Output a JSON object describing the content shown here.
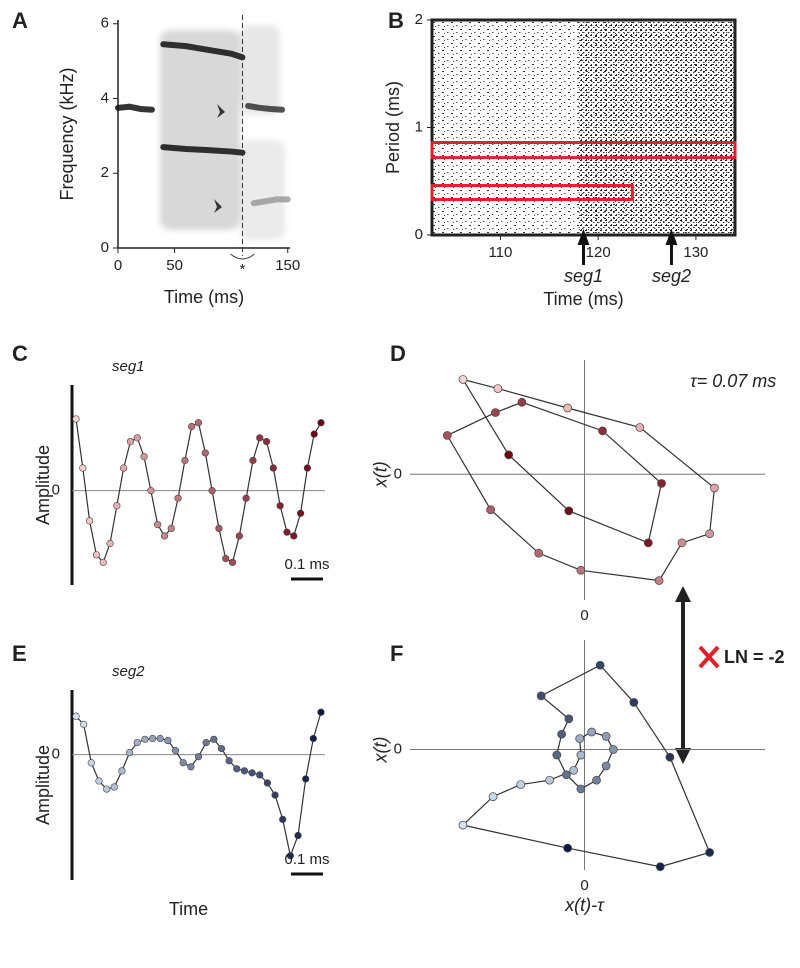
{
  "link": {
    "text": "LN = -2"
  },
  "chart_data": [
    {
      "type": "spectrogram",
      "label": "A",
      "xlabel": "Time (ms)",
      "ylabel": "Frequency (kHz)",
      "xlim": [
        0,
        152
      ],
      "ylim": [
        0,
        6.1
      ],
      "xticks": [
        0,
        50,
        150
      ],
      "yticks": [
        0,
        2,
        4,
        6
      ],
      "marker_x": 110,
      "marker_text": "*",
      "series": [
        {
          "color": "#111111",
          "x": [
            0,
            10,
            20,
            30
          ],
          "values": [
            3.75,
            3.78,
            3.72,
            3.7
          ]
        },
        {
          "color": "#111111",
          "x": [
            40,
            60,
            80,
            100,
            110
          ],
          "values": [
            5.45,
            5.4,
            5.3,
            5.2,
            5.1
          ]
        },
        {
          "color": "#111111",
          "x": [
            40,
            60,
            80,
            100,
            110
          ],
          "values": [
            2.7,
            2.65,
            2.62,
            2.58,
            2.55
          ]
        },
        {
          "color": "#333333",
          "x": [
            115,
            125,
            135,
            145
          ],
          "values": [
            3.8,
            3.75,
            3.72,
            3.7
          ]
        },
        {
          "color": "#9a9a9a",
          "x": [
            120,
            130,
            140,
            150
          ],
          "values": [
            1.2,
            1.25,
            1.3,
            1.3
          ]
        }
      ]
    },
    {
      "type": "raster",
      "label": "B",
      "xlabel": "Time (ms)",
      "ylabel": "Period (ms)",
      "xlim": [
        103,
        134
      ],
      "ylim": [
        0,
        2
      ],
      "xticks": [
        110,
        120,
        130
      ],
      "yticks": [
        0,
        1,
        2
      ],
      "boxes": [
        {
          "x": [
            103,
            134
          ],
          "y": [
            0.72,
            0.86
          ],
          "color": "#e0202a"
        },
        {
          "x": [
            103,
            123.5
          ],
          "y": [
            0.33,
            0.46
          ],
          "color": "#e0202a"
        }
      ],
      "markers": [
        {
          "x": 118.5,
          "label": "seg1"
        },
        {
          "x": 127.5,
          "label": "seg2"
        }
      ]
    },
    {
      "type": "waveform",
      "label": "C",
      "title": "seg1",
      "ylabel": "Amplitude",
      "ylim": [
        -1.25,
        1.4
      ],
      "yticks": [
        0
      ],
      "scale_bar": "0.1 ms",
      "colors": [
        "#fbd3d3",
        "#6e0010"
      ],
      "values": [
        0.95,
        0.3,
        -0.4,
        -0.85,
        -0.95,
        -0.7,
        -0.2,
        0.3,
        0.65,
        0.7,
        0.45,
        0.0,
        -0.45,
        -0.6,
        -0.5,
        -0.1,
        0.4,
        0.85,
        0.9,
        0.5,
        0.0,
        -0.5,
        -0.9,
        -0.95,
        -0.6,
        -0.1,
        0.4,
        0.7,
        0.65,
        0.3,
        -0.2,
        -0.55,
        -0.6,
        -0.3,
        0.3,
        0.75,
        0.9
      ]
    },
    {
      "type": "phase",
      "label": "D",
      "ylabel": "x(t)",
      "annotation": "τ= 0.07 ms",
      "xlim": [
        -1.45,
        1.5
      ],
      "ylim": [
        -1.1,
        1.0
      ],
      "xticks": [
        0
      ],
      "yticks": [
        0
      ],
      "colors": [
        "#fbd3d3",
        "#6e0010"
      ],
      "x": [
        -1.01,
        -0.72,
        -0.14,
        0.46,
        1.08,
        1.04,
        0.81,
        0.62,
        -0.03,
        -0.38,
        -0.78,
        -1.14,
        -0.74,
        -0.52,
        0.15,
        0.64,
        0.53,
        -0.13,
        -0.63
      ],
      "values": [
        0.83,
        0.75,
        0.58,
        0.41,
        -0.12,
        -0.52,
        -0.6,
        -0.93,
        -0.84,
        -0.69,
        -0.31,
        0.34,
        0.54,
        0.63,
        0.38,
        -0.08,
        -0.6,
        -0.32,
        0.17
      ]
    },
    {
      "type": "waveform",
      "label": "E",
      "title": "seg2",
      "ylabel": "Amplitude",
      "xlabel": "Time",
      "ylim": [
        -3.1,
        1.6
      ],
      "yticks": [
        0
      ],
      "scale_bar": "0.1 ms",
      "colors": [
        "#d3e0f5",
        "#0d1a40"
      ],
      "values": [
        0.95,
        0.75,
        -0.2,
        -0.65,
        -0.85,
        -0.8,
        -0.4,
        0.05,
        0.3,
        0.38,
        0.4,
        0.4,
        0.35,
        0.1,
        -0.2,
        -0.3,
        -0.05,
        0.3,
        0.38,
        0.15,
        -0.15,
        -0.35,
        -0.4,
        -0.45,
        -0.5,
        -0.7,
        -1.0,
        -1.6,
        -2.5,
        -2.0,
        -0.6,
        0.4,
        1.05
      ]
    },
    {
      "type": "phase",
      "label": "F",
      "ylabel": "x(t)",
      "xlabel": "x(t)-τ",
      "xlim": [
        -1.45,
        1.5
      ],
      "ylim": [
        -1.1,
        1.0
      ],
      "xticks": [
        0
      ],
      "yticks": [
        0
      ],
      "colors": [
        "#d3e0f5",
        "#0d1a40"
      ],
      "x": [
        -1.01,
        -0.76,
        -0.53,
        -0.29,
        -0.09,
        -0.03,
        -0.04,
        0.06,
        0.18,
        0.24,
        0.18,
        0.1,
        -0.03,
        -0.15,
        -0.23,
        -0.19,
        -0.13,
        -0.36,
        0.13,
        0.41,
        0.71,
        1.04,
        0.63,
        -0.14
      ],
      "values": [
        -0.69,
        -0.43,
        -0.32,
        -0.28,
        -0.19,
        -0.05,
        0.1,
        0.16,
        0.12,
        0.0,
        -0.15,
        -0.28,
        -0.36,
        -0.23,
        -0.05,
        0.14,
        0.28,
        0.49,
        0.77,
        0.43,
        -0.07,
        -0.94,
        -1.07,
        -0.9
      ]
    }
  ]
}
